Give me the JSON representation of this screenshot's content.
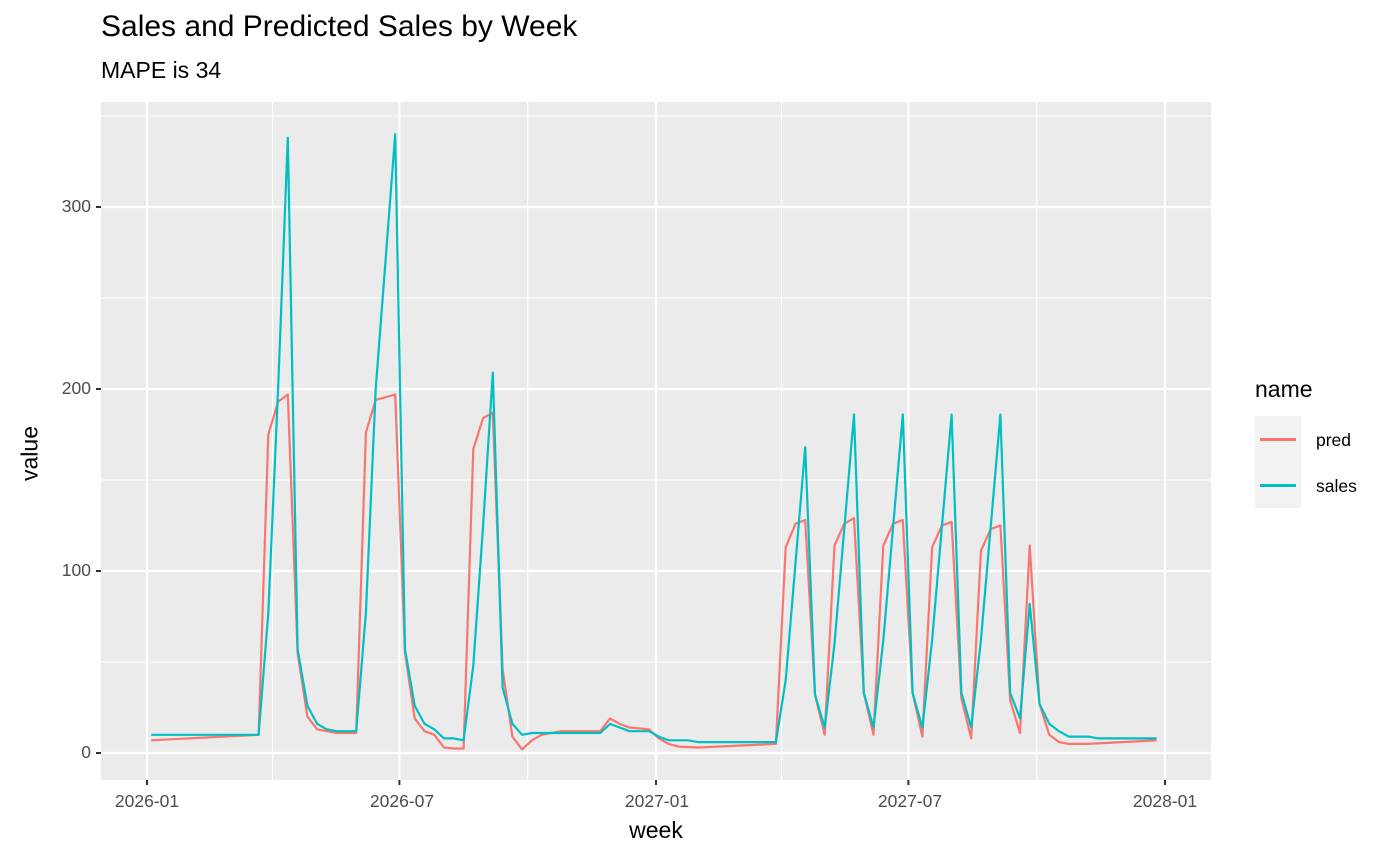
{
  "title": "Sales and Predicted Sales by Week",
  "subtitle": "MAPE is 34",
  "axes": {
    "xlabel": "week",
    "ylabel": "value",
    "yticks": [
      "0",
      "100",
      "200",
      "300"
    ],
    "xticks": [
      "2026-01",
      "2026-07",
      "2027-01",
      "2027-07",
      "2028-01"
    ]
  },
  "legend": {
    "title": "name",
    "items": [
      {
        "label": "pred",
        "color": "#F8766D"
      },
      {
        "label": "sales",
        "color": "#00BFC4"
      }
    ]
  },
  "colors": {
    "panel_bg": "#EBEBEB",
    "grid_major": "#FFFFFF",
    "pred": "#F8766D",
    "sales": "#00BFC4"
  },
  "chart_data": {
    "type": "line",
    "title": "Sales and Predicted Sales by Week",
    "subtitle": "MAPE is 34",
    "xlabel": "week",
    "ylabel": "value",
    "ylim": [
      -15,
      358
    ],
    "xlim": [
      "2025-12-20",
      "2028-01-25"
    ],
    "grid": true,
    "legend_position": "right",
    "x_tick_labels": [
      "2026-01",
      "2026-07",
      "2027-01",
      "2027-07",
      "2028-01"
    ],
    "y_tick_labels": [
      0,
      100,
      200,
      300
    ],
    "series": [
      {
        "name": "sales",
        "color": "#00BFC4",
        "points": [
          [
            "2026-01-04",
            10
          ],
          [
            "2026-03-22",
            10
          ],
          [
            "2026-03-29",
            77
          ],
          [
            "2026-04-05",
            200
          ],
          [
            "2026-04-12",
            338
          ],
          [
            "2026-04-19",
            57
          ],
          [
            "2026-04-26",
            26
          ],
          [
            "2026-05-03",
            16
          ],
          [
            "2026-05-10",
            13
          ],
          [
            "2026-05-17",
            12
          ],
          [
            "2026-05-24",
            12
          ],
          [
            "2026-05-31",
            12
          ],
          [
            "2026-06-07",
            77
          ],
          [
            "2026-06-14",
            200
          ],
          [
            "2026-06-28",
            340
          ],
          [
            "2026-07-05",
            57
          ],
          [
            "2026-07-12",
            26
          ],
          [
            "2026-07-19",
            16
          ],
          [
            "2026-07-26",
            13
          ],
          [
            "2026-08-02",
            8
          ],
          [
            "2026-08-09",
            8
          ],
          [
            "2026-08-16",
            7
          ],
          [
            "2026-08-23",
            48
          ],
          [
            "2026-08-30",
            125
          ],
          [
            "2026-09-06",
            209
          ],
          [
            "2026-09-13",
            36
          ],
          [
            "2026-09-20",
            16
          ],
          [
            "2026-09-27",
            10
          ],
          [
            "2026-10-04",
            11
          ],
          [
            "2026-10-25",
            11
          ],
          [
            "2026-11-22",
            11
          ],
          [
            "2026-11-29",
            16
          ],
          [
            "2026-12-06",
            14
          ],
          [
            "2026-12-13",
            12
          ],
          [
            "2026-12-27",
            12
          ],
          [
            "2027-01-03",
            9
          ],
          [
            "2027-01-10",
            7
          ],
          [
            "2027-01-24",
            7
          ],
          [
            "2027-01-31",
            6
          ],
          [
            "2027-03-28",
            6
          ],
          [
            "2027-04-04",
            40
          ],
          [
            "2027-04-18",
            168
          ],
          [
            "2027-04-25",
            32
          ],
          [
            "2027-05-02",
            14
          ],
          [
            "2027-05-09",
            60
          ],
          [
            "2027-05-23",
            186
          ],
          [
            "2027-05-30",
            33
          ],
          [
            "2027-06-06",
            14
          ],
          [
            "2027-06-13",
            62
          ],
          [
            "2027-06-27",
            186
          ],
          [
            "2027-07-04",
            33
          ],
          [
            "2027-07-11",
            14
          ],
          [
            "2027-07-18",
            62
          ],
          [
            "2027-08-01",
            186
          ],
          [
            "2027-08-08",
            33
          ],
          [
            "2027-08-15",
            14
          ],
          [
            "2027-08-22",
            62
          ],
          [
            "2027-09-05",
            186
          ],
          [
            "2027-09-12",
            33
          ],
          [
            "2027-09-19",
            19
          ],
          [
            "2027-09-26",
            82
          ],
          [
            "2027-10-03",
            27
          ],
          [
            "2027-10-10",
            16
          ],
          [
            "2027-10-17",
            12
          ],
          [
            "2027-10-24",
            9
          ],
          [
            "2027-11-07",
            9
          ],
          [
            "2027-11-14",
            8
          ],
          [
            "2027-12-26",
            8
          ]
        ]
      },
      {
        "name": "pred",
        "color": "#F8766D",
        "points": [
          [
            "2026-01-04",
            7
          ],
          [
            "2026-03-22",
            10
          ],
          [
            "2026-03-29",
            175
          ],
          [
            "2026-04-05",
            193
          ],
          [
            "2026-04-12",
            197
          ],
          [
            "2026-04-19",
            55
          ],
          [
            "2026-04-26",
            20
          ],
          [
            "2026-05-03",
            13
          ],
          [
            "2026-05-10",
            12
          ],
          [
            "2026-05-17",
            11
          ],
          [
            "2026-05-24",
            11
          ],
          [
            "2026-05-31",
            11
          ],
          [
            "2026-06-07",
            176
          ],
          [
            "2026-06-14",
            194
          ],
          [
            "2026-06-28",
            197
          ],
          [
            "2026-07-05",
            55
          ],
          [
            "2026-07-12",
            19
          ],
          [
            "2026-07-19",
            12
          ],
          [
            "2026-07-26",
            10
          ],
          [
            "2026-08-02",
            3
          ],
          [
            "2026-08-09",
            2.5
          ],
          [
            "2026-08-16",
            2.5
          ],
          [
            "2026-08-23",
            167
          ],
          [
            "2026-08-30",
            184
          ],
          [
            "2026-09-06",
            187
          ],
          [
            "2026-09-13",
            46
          ],
          [
            "2026-09-20",
            9
          ],
          [
            "2026-09-27",
            2
          ],
          [
            "2026-10-04",
            7
          ],
          [
            "2026-10-11",
            10
          ],
          [
            "2026-10-25",
            12
          ],
          [
            "2026-11-22",
            12
          ],
          [
            "2026-11-29",
            19
          ],
          [
            "2026-12-06",
            16
          ],
          [
            "2026-12-13",
            14
          ],
          [
            "2026-12-27",
            13
          ],
          [
            "2027-01-03",
            8
          ],
          [
            "2027-01-10",
            5
          ],
          [
            "2027-01-17",
            3.5
          ],
          [
            "2027-01-31",
            3
          ],
          [
            "2027-03-28",
            5
          ],
          [
            "2027-04-04",
            113
          ],
          [
            "2027-04-11",
            126
          ],
          [
            "2027-04-18",
            128
          ],
          [
            "2027-04-25",
            32
          ],
          [
            "2027-05-02",
            10
          ],
          [
            "2027-05-09",
            114
          ],
          [
            "2027-05-16",
            126
          ],
          [
            "2027-05-23",
            129
          ],
          [
            "2027-05-30",
            33
          ],
          [
            "2027-06-06",
            10
          ],
          [
            "2027-06-13",
            114
          ],
          [
            "2027-06-20",
            126
          ],
          [
            "2027-06-27",
            128
          ],
          [
            "2027-07-04",
            33
          ],
          [
            "2027-07-11",
            9
          ],
          [
            "2027-07-18",
            113
          ],
          [
            "2027-07-25",
            125
          ],
          [
            "2027-08-01",
            127
          ],
          [
            "2027-08-08",
            30
          ],
          [
            "2027-08-15",
            8
          ],
          [
            "2027-08-22",
            111
          ],
          [
            "2027-08-29",
            123
          ],
          [
            "2027-09-05",
            125
          ],
          [
            "2027-09-12",
            29
          ],
          [
            "2027-09-19",
            11
          ],
          [
            "2027-09-26",
            114
          ],
          [
            "2027-10-03",
            27
          ],
          [
            "2027-10-10",
            10
          ],
          [
            "2027-10-17",
            6
          ],
          [
            "2027-10-24",
            5
          ],
          [
            "2027-11-07",
            5
          ],
          [
            "2027-12-26",
            7
          ]
        ]
      }
    ]
  }
}
